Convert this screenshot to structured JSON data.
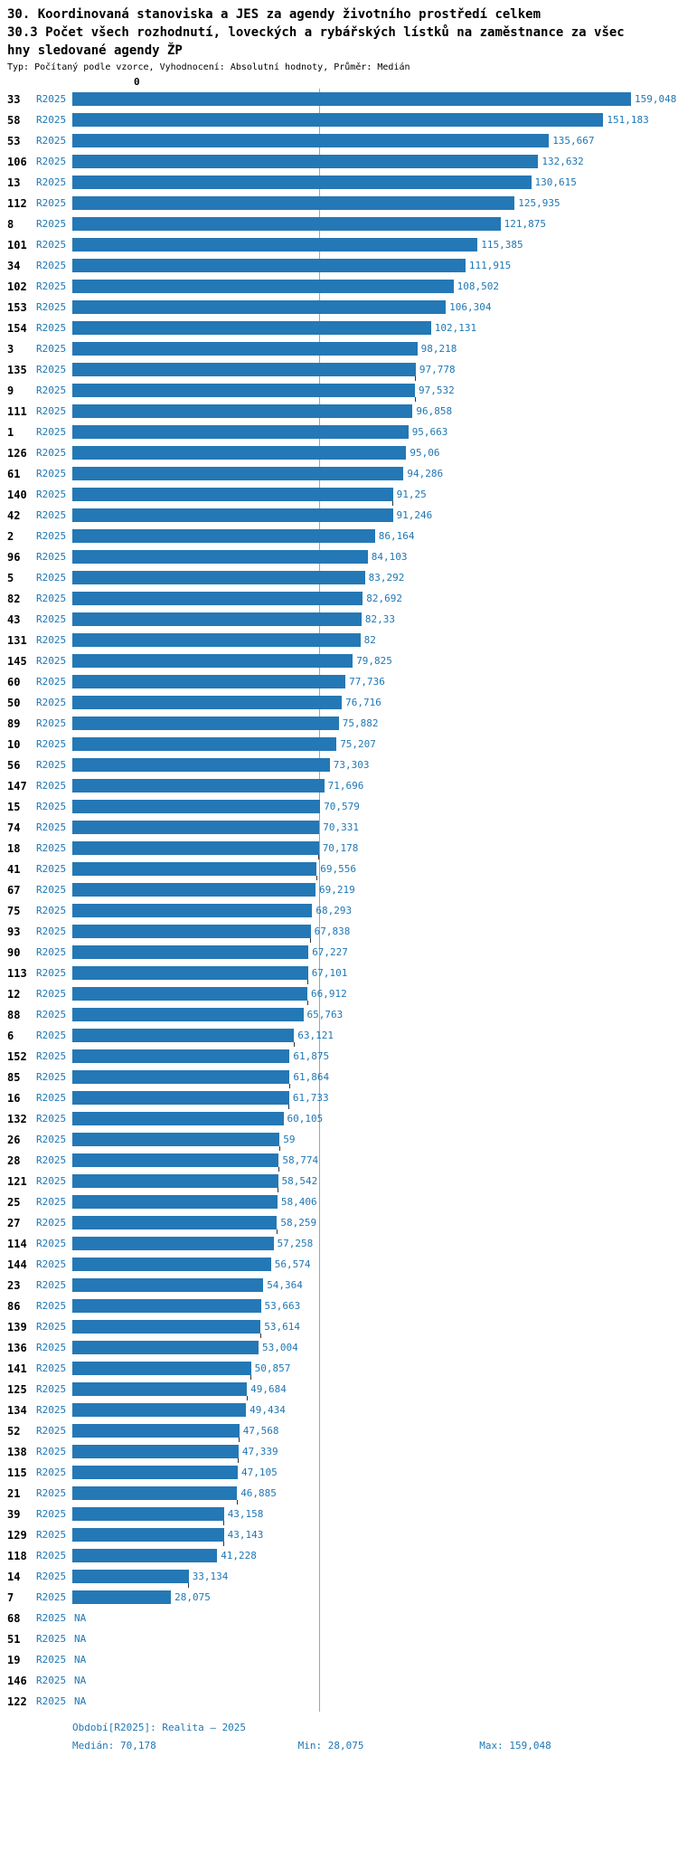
{
  "title": {
    "line1": "30. Koordinovaná stanoviska a JES za agendy životního prostředí celkem",
    "line2": "30.3 Počet všech rozhodnutí, loveckých a rybářských lístků na zaměstnance za všec",
    "line3": "hny sledované agendy ŽP",
    "meta": "Typ: Počítaný podle vzorce, Vyhodnocení: Absolutní hodnoty, Průměr: Medián"
  },
  "axis": {
    "zero_label": "0"
  },
  "chart_data": {
    "type": "bar",
    "orientation": "horizontal",
    "title": "30.3 Počet všech rozhodnutí, loveckých a rybářských lístků na zaměstnance za všechny sledované agendy ŽP",
    "series_name": "R2025",
    "na_label": "NA",
    "value_axis": {
      "min": 0,
      "max": 159.048,
      "decimal_separator": ","
    },
    "stats": {
      "median": 70.178,
      "min": 28.075,
      "max": 159.048
    },
    "rows": [
      {
        "id": "33",
        "period": "R2025",
        "value": 159.048,
        "display": "159,048",
        "tick": false
      },
      {
        "id": "58",
        "period": "R2025",
        "value": 151.183,
        "display": "151,183",
        "tick": false
      },
      {
        "id": "53",
        "period": "R2025",
        "value": 135.667,
        "display": "135,667",
        "tick": false
      },
      {
        "id": "106",
        "period": "R2025",
        "value": 132.632,
        "display": "132,632",
        "tick": false
      },
      {
        "id": "13",
        "period": "R2025",
        "value": 130.615,
        "display": "130,615",
        "tick": false
      },
      {
        "id": "112",
        "period": "R2025",
        "value": 125.935,
        "display": "125,935",
        "tick": false
      },
      {
        "id": "8",
        "period": "R2025",
        "value": 121.875,
        "display": "121,875",
        "tick": false
      },
      {
        "id": "101",
        "period": "R2025",
        "value": 115.385,
        "display": "115,385",
        "tick": false
      },
      {
        "id": "34",
        "period": "R2025",
        "value": 111.915,
        "display": "111,915",
        "tick": false
      },
      {
        "id": "102",
        "period": "R2025",
        "value": 108.502,
        "display": "108,502",
        "tick": false
      },
      {
        "id": "153",
        "period": "R2025",
        "value": 106.304,
        "display": "106,304",
        "tick": false
      },
      {
        "id": "154",
        "period": "R2025",
        "value": 102.131,
        "display": "102,131",
        "tick": false
      },
      {
        "id": "3",
        "period": "R2025",
        "value": 98.218,
        "display": "98,218",
        "tick": false
      },
      {
        "id": "135",
        "period": "R2025",
        "value": 97.778,
        "display": "97,778",
        "tick": true
      },
      {
        "id": "9",
        "period": "R2025",
        "value": 97.532,
        "display": "97,532",
        "tick": true
      },
      {
        "id": "111",
        "period": "R2025",
        "value": 96.858,
        "display": "96,858",
        "tick": false
      },
      {
        "id": "1",
        "period": "R2025",
        "value": 95.663,
        "display": "95,663",
        "tick": false
      },
      {
        "id": "126",
        "period": "R2025",
        "value": 95.06,
        "display": "95,06",
        "tick": false
      },
      {
        "id": "61",
        "period": "R2025",
        "value": 94.286,
        "display": "94,286",
        "tick": false
      },
      {
        "id": "140",
        "period": "R2025",
        "value": 91.25,
        "display": "91,25",
        "tick": true
      },
      {
        "id": "42",
        "period": "R2025",
        "value": 91.246,
        "display": "91,246",
        "tick": false
      },
      {
        "id": "2",
        "period": "R2025",
        "value": 86.164,
        "display": "86,164",
        "tick": false
      },
      {
        "id": "96",
        "period": "R2025",
        "value": 84.103,
        "display": "84,103",
        "tick": false
      },
      {
        "id": "5",
        "period": "R2025",
        "value": 83.292,
        "display": "83,292",
        "tick": false
      },
      {
        "id": "82",
        "period": "R2025",
        "value": 82.692,
        "display": "82,692",
        "tick": false
      },
      {
        "id": "43",
        "period": "R2025",
        "value": 82.33,
        "display": "82,33",
        "tick": false
      },
      {
        "id": "131",
        "period": "R2025",
        "value": 82,
        "display": "82",
        "tick": false
      },
      {
        "id": "145",
        "period": "R2025",
        "value": 79.825,
        "display": "79,825",
        "tick": false
      },
      {
        "id": "60",
        "period": "R2025",
        "value": 77.736,
        "display": "77,736",
        "tick": false
      },
      {
        "id": "50",
        "period": "R2025",
        "value": 76.716,
        "display": "76,716",
        "tick": false
      },
      {
        "id": "89",
        "period": "R2025",
        "value": 75.882,
        "display": "75,882",
        "tick": false
      },
      {
        "id": "10",
        "period": "R2025",
        "value": 75.207,
        "display": "75,207",
        "tick": false
      },
      {
        "id": "56",
        "period": "R2025",
        "value": 73.303,
        "display": "73,303",
        "tick": false
      },
      {
        "id": "147",
        "period": "R2025",
        "value": 71.696,
        "display": "71,696",
        "tick": false
      },
      {
        "id": "15",
        "period": "R2025",
        "value": 70.579,
        "display": "70,579",
        "tick": false
      },
      {
        "id": "74",
        "period": "R2025",
        "value": 70.331,
        "display": "70,331",
        "tick": false
      },
      {
        "id": "18",
        "period": "R2025",
        "value": 70.178,
        "display": "70,178",
        "tick": true
      },
      {
        "id": "41",
        "period": "R2025",
        "value": 69.556,
        "display": "69,556",
        "tick": true
      },
      {
        "id": "67",
        "period": "R2025",
        "value": 69.219,
        "display": "69,219",
        "tick": false
      },
      {
        "id": "75",
        "period": "R2025",
        "value": 68.293,
        "display": "68,293",
        "tick": false
      },
      {
        "id": "93",
        "period": "R2025",
        "value": 67.838,
        "display": "67,838",
        "tick": true
      },
      {
        "id": "90",
        "period": "R2025",
        "value": 67.227,
        "display": "67,227",
        "tick": false
      },
      {
        "id": "113",
        "period": "R2025",
        "value": 67.101,
        "display": "67,101",
        "tick": true
      },
      {
        "id": "12",
        "period": "R2025",
        "value": 66.912,
        "display": "66,912",
        "tick": true
      },
      {
        "id": "88",
        "period": "R2025",
        "value": 65.763,
        "display": "65,763",
        "tick": false
      },
      {
        "id": "6",
        "period": "R2025",
        "value": 63.121,
        "display": "63,121",
        "tick": true
      },
      {
        "id": "152",
        "period": "R2025",
        "value": 61.875,
        "display": "61,875",
        "tick": false
      },
      {
        "id": "85",
        "period": "R2025",
        "value": 61.864,
        "display": "61,864",
        "tick": true
      },
      {
        "id": "16",
        "period": "R2025",
        "value": 61.733,
        "display": "61,733",
        "tick": true
      },
      {
        "id": "132",
        "period": "R2025",
        "value": 60.105,
        "display": "60,105",
        "tick": false
      },
      {
        "id": "26",
        "period": "R2025",
        "value": 59,
        "display": "59",
        "tick": true
      },
      {
        "id": "28",
        "period": "R2025",
        "value": 58.774,
        "display": "58,774",
        "tick": true
      },
      {
        "id": "121",
        "period": "R2025",
        "value": 58.542,
        "display": "58,542",
        "tick": true
      },
      {
        "id": "25",
        "period": "R2025",
        "value": 58.406,
        "display": "58,406",
        "tick": false
      },
      {
        "id": "27",
        "period": "R2025",
        "value": 58.259,
        "display": "58,259",
        "tick": true
      },
      {
        "id": "114",
        "period": "R2025",
        "value": 57.258,
        "display": "57,258",
        "tick": false
      },
      {
        "id": "144",
        "period": "R2025",
        "value": 56.574,
        "display": "56,574",
        "tick": false
      },
      {
        "id": "23",
        "period": "R2025",
        "value": 54.364,
        "display": "54,364",
        "tick": false
      },
      {
        "id": "86",
        "period": "R2025",
        "value": 53.663,
        "display": "53,663",
        "tick": false
      },
      {
        "id": "139",
        "period": "R2025",
        "value": 53.614,
        "display": "53,614",
        "tick": true
      },
      {
        "id": "136",
        "period": "R2025",
        "value": 53.004,
        "display": "53,004",
        "tick": false
      },
      {
        "id": "141",
        "period": "R2025",
        "value": 50.857,
        "display": "50,857",
        "tick": true
      },
      {
        "id": "125",
        "period": "R2025",
        "value": 49.684,
        "display": "49,684",
        "tick": true
      },
      {
        "id": "134",
        "period": "R2025",
        "value": 49.434,
        "display": "49,434",
        "tick": false
      },
      {
        "id": "52",
        "period": "R2025",
        "value": 47.568,
        "display": "47,568",
        "tick": true
      },
      {
        "id": "138",
        "period": "R2025",
        "value": 47.339,
        "display": "47,339",
        "tick": true
      },
      {
        "id": "115",
        "period": "R2025",
        "value": 47.105,
        "display": "47,105",
        "tick": false
      },
      {
        "id": "21",
        "period": "R2025",
        "value": 46.885,
        "display": "46,885",
        "tick": true
      },
      {
        "id": "39",
        "period": "R2025",
        "value": 43.158,
        "display": "43,158",
        "tick": true
      },
      {
        "id": "129",
        "period": "R2025",
        "value": 43.143,
        "display": "43,143",
        "tick": true
      },
      {
        "id": "118",
        "period": "R2025",
        "value": 41.228,
        "display": "41,228",
        "tick": false
      },
      {
        "id": "14",
        "period": "R2025",
        "value": 33.134,
        "display": "33,134",
        "tick": true
      },
      {
        "id": "7",
        "period": "R2025",
        "value": 28.075,
        "display": "28,075",
        "tick": false
      },
      {
        "id": "68",
        "period": "R2025",
        "value": null,
        "display": "NA",
        "tick": false
      },
      {
        "id": "51",
        "period": "R2025",
        "value": null,
        "display": "NA",
        "tick": false
      },
      {
        "id": "19",
        "period": "R2025",
        "value": null,
        "display": "NA",
        "tick": false
      },
      {
        "id": "146",
        "period": "R2025",
        "value": null,
        "display": "NA",
        "tick": false
      },
      {
        "id": "122",
        "period": "R2025",
        "value": null,
        "display": "NA",
        "tick": false
      }
    ]
  },
  "footer": {
    "period": "Období[R2025]: Realita – 2025",
    "median": "Medián: 70,178",
    "min": "Min: 28,075",
    "max": "Max: 159,048"
  },
  "colors": {
    "bar": "#2478b5",
    "link": "#1f77b4",
    "value_label": "#1f77b4",
    "median_line": "#74b4cc",
    "footer_text": "#1f77b4",
    "title_text": "#000000",
    "tick": "#333333"
  }
}
